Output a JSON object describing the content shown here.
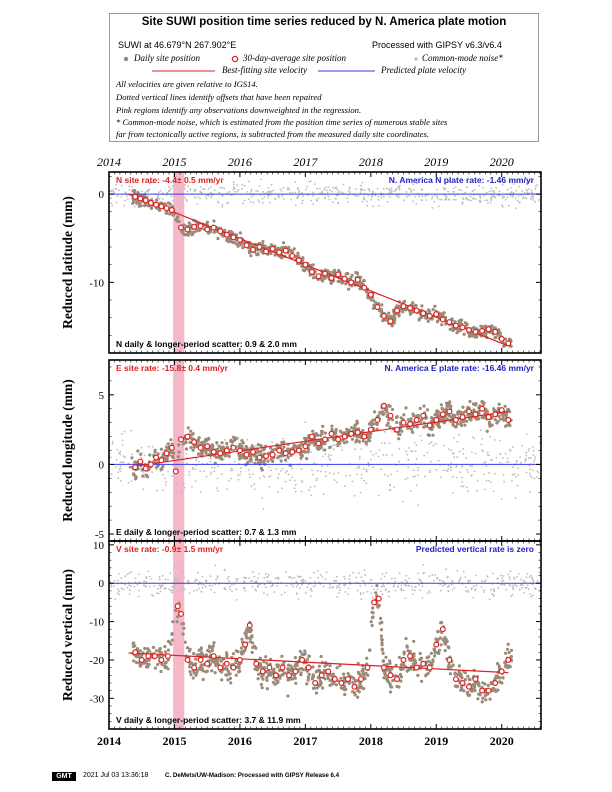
{
  "header": {
    "title": "Site SUWI position time series reduced by N. America plate motion",
    "site_info": "SUWI at 46.679°N 267.902°E",
    "processing": "Processed with GIPSY v6.3/v6.4"
  },
  "legend": {
    "daily": "Daily site position",
    "avg30": "30-day-average site position",
    "common_mode": "Common-mode noise*",
    "best_fit": "Best-fitting site velocity",
    "predicted": "Predicted plate velocity"
  },
  "notes": [
    "All velocities are given relative to IGS14.",
    "Dotted vertical lines identify offsets that have been repaired",
    "Pink regions identify any observations downweighted in the regression.",
    "* Common-mode noise, which is estimated from the position time series of numerous stable sites",
    "far from tectonically active regions, is subtracted from the measured daily site coordinates."
  ],
  "colors": {
    "daily": "#9b8a78",
    "common_mode": "#bbbbbb",
    "best_fit": "#e02020",
    "predicted": "#3a3aee",
    "pink": "#f4b8c8"
  },
  "chart_data": [
    {
      "type": "scatter",
      "name": "north",
      "ylabel": "Reduced latitude (mm)",
      "xlim": [
        2014,
        2020.6
      ],
      "ylim": [
        -18,
        2.5
      ],
      "yticks": [
        0,
        -10
      ],
      "xticks": [
        2014,
        2015,
        2016,
        2017,
        2018,
        2019,
        2020
      ],
      "site_rate": "N site rate:  -4.4± 0.5 mm/yr",
      "plate_rate": "N. America N plate rate:  -1.46 mm/yr",
      "scatter": "N daily & longer-period scatter:   0.9 &   2.0 mm",
      "pink_range": [
        2014.98,
        2015.15
      ],
      "best_fit": {
        "x": [
          2014.3,
          2020.1
        ],
        "y": [
          0.0,
          -17.2
        ]
      },
      "avg30": {
        "x": [
          2014.4,
          2014.48,
          2014.56,
          2014.64,
          2014.72,
          2014.8,
          2014.88,
          2014.96,
          2015.1,
          2015.2,
          2015.3,
          2015.4,
          2015.5,
          2015.6,
          2015.7,
          2015.8,
          2015.9,
          2016.0,
          2016.1,
          2016.2,
          2016.3,
          2016.4,
          2016.5,
          2016.6,
          2016.7,
          2016.8,
          2016.9,
          2017.0,
          2017.1,
          2017.2,
          2017.3,
          2017.4,
          2017.5,
          2017.6,
          2017.7,
          2017.8,
          2017.9,
          2018.0,
          2018.1,
          2018.2,
          2018.3,
          2018.4,
          2018.5,
          2018.6,
          2018.7,
          2018.8,
          2018.9,
          2019.0,
          2019.1,
          2019.2,
          2019.3,
          2019.4,
          2019.5,
          2019.6,
          2019.7,
          2019.8,
          2019.9,
          2020.0,
          2020.1
        ],
        "y": [
          -0.3,
          -0.5,
          -0.7,
          -1.0,
          -1.2,
          -1.4,
          -1.6,
          -1.8,
          -3.8,
          -4.0,
          -3.7,
          -3.6,
          -4.0,
          -3.8,
          -4.2,
          -4.6,
          -4.9,
          -5.2,
          -5.8,
          -6.3,
          -6.0,
          -6.5,
          -6.2,
          -6.6,
          -6.4,
          -7.0,
          -7.5,
          -8.0,
          -8.8,
          -9.3,
          -9.0,
          -9.5,
          -9.1,
          -9.6,
          -10.0,
          -9.7,
          -10.6,
          -11.4,
          -12.8,
          -13.8,
          -14.4,
          -13.2,
          -12.7,
          -12.9,
          -13.2,
          -13.5,
          -13.8,
          -13.6,
          -14.2,
          -14.5,
          -14.9,
          -15.1,
          -15.4,
          -15.6,
          -15.5,
          -15.3,
          -15.6,
          -16.4,
          -16.9
        ]
      }
    },
    {
      "type": "scatter",
      "name": "east",
      "ylabel": "Reduced longitude (mm)",
      "xlim": [
        2014,
        2020.6
      ],
      "ylim": [
        -5.5,
        7.5
      ],
      "yticks": [
        5,
        0,
        -5
      ],
      "xticks": [
        2014,
        2015,
        2016,
        2017,
        2018,
        2019,
        2020
      ],
      "site_rate": "E site rate:  -15.8± 0.4 mm/yr",
      "plate_rate": "N. America E plate rate:  -16.46 mm/yr",
      "scatter": "E daily & longer-period scatter:   0.7 &   1.3 mm",
      "pink_range": [
        2014.98,
        2015.15
      ],
      "best_fit": {
        "x": [
          2014.3,
          2020.1
        ],
        "y": [
          -0.2,
          3.8
        ]
      },
      "avg30": {
        "x": [
          2014.4,
          2014.48,
          2014.56,
          2014.64,
          2014.72,
          2014.8,
          2014.88,
          2014.96,
          2015.02,
          2015.1,
          2015.2,
          2015.3,
          2015.4,
          2015.5,
          2015.6,
          2015.7,
          2015.8,
          2015.9,
          2016.0,
          2016.1,
          2016.2,
          2016.3,
          2016.4,
          2016.5,
          2016.6,
          2016.7,
          2016.8,
          2016.9,
          2017.0,
          2017.1,
          2017.2,
          2017.3,
          2017.4,
          2017.5,
          2017.6,
          2017.7,
          2017.8,
          2017.9,
          2018.0,
          2018.1,
          2018.2,
          2018.3,
          2018.4,
          2018.5,
          2018.6,
          2018.7,
          2018.8,
          2018.9,
          2019.0,
          2019.1,
          2019.2,
          2019.3,
          2019.4,
          2019.5,
          2019.6,
          2019.7,
          2019.8,
          2019.9,
          2020.0,
          2020.1
        ],
        "y": [
          -0.2,
          0.2,
          -0.3,
          0.0,
          0.5,
          0.3,
          0.8,
          1.2,
          -0.5,
          1.8,
          2.0,
          1.6,
          1.2,
          1.3,
          0.9,
          0.8,
          1.0,
          1.2,
          1.0,
          0.7,
          0.9,
          0.5,
          0.6,
          0.7,
          1.0,
          0.8,
          0.9,
          1.0,
          1.3,
          2.0,
          1.5,
          1.8,
          2.2,
          1.8,
          2.0,
          2.2,
          2.3,
          2.0,
          2.5,
          3.2,
          4.2,
          3.5,
          2.5,
          3.0,
          2.9,
          3.2,
          3.5,
          2.8,
          3.2,
          3.6,
          3.8,
          3.2,
          3.4,
          3.8,
          3.6,
          4.0,
          3.4,
          3.6,
          3.9,
          3.2
        ]
      }
    },
    {
      "type": "scatter",
      "name": "vertical",
      "ylabel": "Reduced vertical (mm)",
      "xlim": [
        2014,
        2020.6
      ],
      "ylim": [
        -38,
        11
      ],
      "yticks": [
        10,
        0,
        -10,
        -20,
        -30
      ],
      "xticks": [
        2014,
        2015,
        2016,
        2017,
        2018,
        2019,
        2020
      ],
      "site_rate": "V site rate:  -0.9± 1.5 mm/yr",
      "plate_rate": "Predicted vertical rate is zero",
      "scatter": "V daily & longer-period scatter:   3.7 &  11.9 mm",
      "pink_range": [
        2014.98,
        2015.15
      ],
      "best_fit": {
        "x": [
          2014.3,
          2020.1
        ],
        "y": [
          -18.2,
          -23.3
        ]
      },
      "avg30": {
        "x": [
          2014.4,
          2014.5,
          2014.6,
          2014.7,
          2014.8,
          2014.9,
          2015.05,
          2015.1,
          2015.2,
          2015.3,
          2015.4,
          2015.5,
          2015.6,
          2015.7,
          2015.8,
          2015.9,
          2016.0,
          2016.08,
          2016.15,
          2016.25,
          2016.35,
          2016.45,
          2016.55,
          2016.65,
          2016.75,
          2016.85,
          2016.95,
          2017.05,
          2017.15,
          2017.25,
          2017.35,
          2017.45,
          2017.55,
          2017.65,
          2017.75,
          2017.85,
          2017.95,
          2018.05,
          2018.12,
          2018.2,
          2018.3,
          2018.4,
          2018.5,
          2018.6,
          2018.7,
          2018.8,
          2018.9,
          2019.0,
          2019.1,
          2019.2,
          2019.3,
          2019.4,
          2019.5,
          2019.6,
          2019.7,
          2019.8,
          2019.9,
          2020.0,
          2020.1
        ],
        "y": [
          -18,
          -20,
          -19,
          -19,
          -20,
          -19,
          -6,
          -8,
          -20,
          -22,
          -20,
          -21,
          -19,
          -22,
          -21,
          -22,
          -20,
          -16,
          -11,
          -21,
          -23,
          -22,
          -24,
          -22,
          -24,
          -23,
          -20,
          -22,
          -26,
          -24,
          -23,
          -25,
          -26,
          -25,
          -27,
          -25,
          -22,
          -5,
          -4,
          -22,
          -24,
          -25,
          -20,
          -19,
          -22,
          -21,
          -22,
          -16,
          -12,
          -20,
          -25,
          -26,
          -27,
          -25,
          -28,
          -28,
          -26,
          -23,
          -20
        ]
      }
    }
  ],
  "x_axis_labels": [
    "2014",
    "2015",
    "2016",
    "2017",
    "2018",
    "2019",
    "2020"
  ],
  "footer": {
    "badge": "GMT",
    "timestamp": "2021 Jul 03 13:36:18",
    "credit": "C. DeMets/UW-Madison: Processed with GIPSY Release 6.4"
  }
}
